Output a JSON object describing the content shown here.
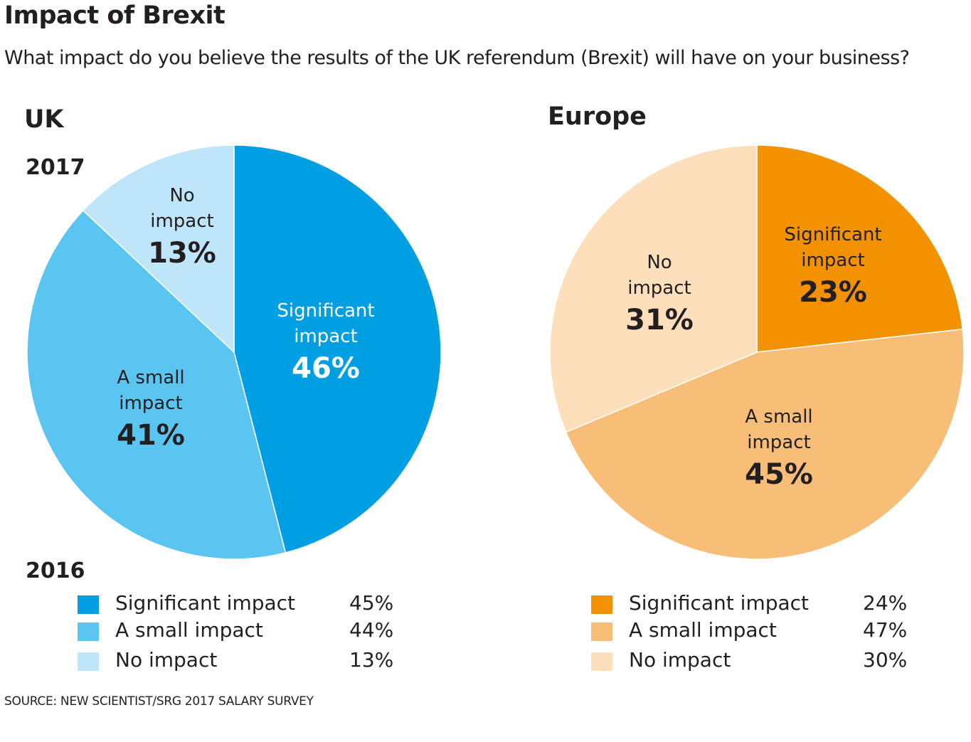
{
  "title": "Impact of Brexit",
  "subtitle": "What impact do you believe the results of the UK referendum (Brexit) will have on your business?",
  "source": "SOURCE: NEW SCIENTIST/SRG 2017 SALARY SURVEY",
  "colors": {
    "uk_significant": "#009fe3",
    "uk_small": "#5bc5f2",
    "uk_none": "#bfe5f9",
    "eu_significant": "#f39200",
    "eu_small": "#f8bd76",
    "eu_none": "#fddfbb",
    "text_dark": "#231f20",
    "text_light": "#ffffff"
  },
  "chart_data": [
    {
      "type": "pie",
      "title": "UK",
      "year_label": "2017",
      "slices": [
        {
          "label_lines": [
            "Significant",
            "impact"
          ],
          "value": 46,
          "value_text": "46%",
          "color_key": "uk_significant",
          "text_color_key": "text_light"
        },
        {
          "label_lines": [
            "A small",
            "impact"
          ],
          "value": 41,
          "value_text": "41%",
          "color_key": "uk_small",
          "text_color_key": "text_dark"
        },
        {
          "label_lines": [
            "No",
            "impact"
          ],
          "value": 13,
          "value_text": "13%",
          "color_key": "uk_none",
          "text_color_key": "text_dark"
        }
      ],
      "legend_title": "2016",
      "legend": [
        {
          "label": "Significant impact",
          "value": "45%",
          "color_key": "uk_significant"
        },
        {
          "label": "A small impact",
          "value": "44%",
          "color_key": "uk_small"
        },
        {
          "label": "No impact",
          "value": "13%",
          "color_key": "uk_none"
        }
      ]
    },
    {
      "type": "pie",
      "title": "Europe",
      "slices": [
        {
          "label_lines": [
            "Significant",
            "impact"
          ],
          "value": 23,
          "value_text": "23%",
          "color_key": "eu_significant",
          "text_color_key": "text_dark"
        },
        {
          "label_lines": [
            "A small",
            "impact"
          ],
          "value": 45,
          "value_text": "45%",
          "color_key": "eu_small",
          "text_color_key": "text_dark"
        },
        {
          "label_lines": [
            "No",
            "impact"
          ],
          "value": 31,
          "value_text": "31%",
          "color_key": "eu_none",
          "text_color_key": "text_dark"
        }
      ],
      "legend": [
        {
          "label": "Significant impact",
          "value": "24%",
          "color_key": "eu_significant"
        },
        {
          "label": "A small impact",
          "value": "47%",
          "color_key": "eu_small"
        },
        {
          "label": "No impact",
          "value": "30%",
          "color_key": "eu_none"
        }
      ]
    }
  ]
}
